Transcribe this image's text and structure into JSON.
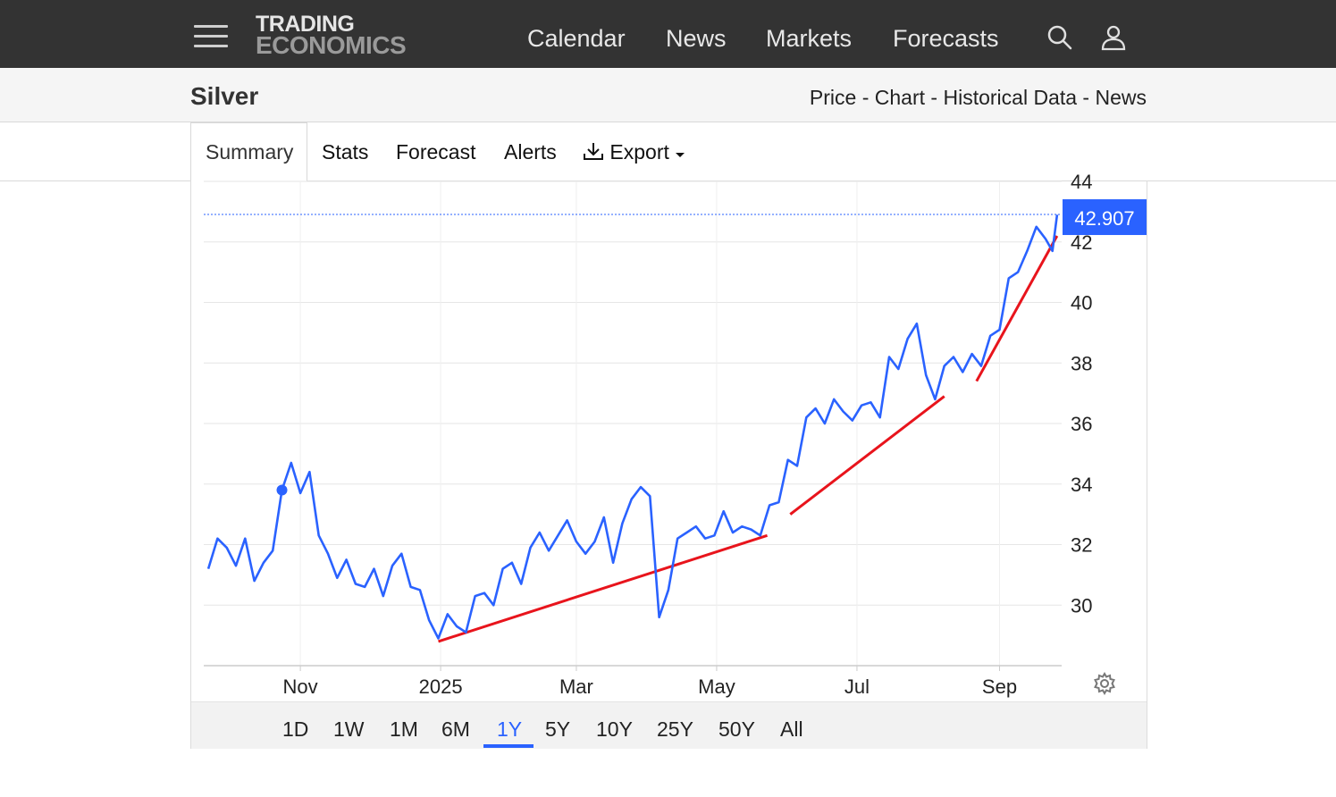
{
  "brand": {
    "line1": "TRADING",
    "line2": "ECONOMICS"
  },
  "nav": [
    {
      "label": "Calendar"
    },
    {
      "label": "News"
    },
    {
      "label": "Markets"
    },
    {
      "label": "Forecasts"
    }
  ],
  "icons": {
    "menu": "hamburger-menu-icon",
    "search": "search-icon",
    "user": "user-icon",
    "download": "download-icon",
    "caret": "caret-down-icon",
    "settings": "gear-icon"
  },
  "page": {
    "title": "Silver"
  },
  "breadcrumb": [
    {
      "label": "Price"
    },
    {
      "label": "Chart"
    },
    {
      "label": "Historical Data"
    },
    {
      "label": "News"
    }
  ],
  "breadcrumb_sep": " - ",
  "tabs": [
    {
      "label": "Summary",
      "active": true
    },
    {
      "label": "Stats"
    },
    {
      "label": "Forecast"
    },
    {
      "label": "Alerts"
    },
    {
      "label": "Export"
    }
  ],
  "ranges": [
    {
      "label": "1D"
    },
    {
      "label": "1W"
    },
    {
      "label": "1M"
    },
    {
      "label": "6M"
    },
    {
      "label": "1Y",
      "active": true
    },
    {
      "label": "5Y"
    },
    {
      "label": "10Y"
    },
    {
      "label": "25Y"
    },
    {
      "label": "50Y"
    },
    {
      "label": "All"
    }
  ],
  "colors": {
    "topbar": "#333333",
    "series": "#2a62ff",
    "trendline": "#e8141c",
    "price_label_bg": "#2a62ff",
    "active_range": "#2a62ff"
  },
  "chart_data": {
    "type": "line",
    "x_ticks": [
      "Nov",
      "2025",
      "Mar",
      "May",
      "Jul",
      "Sep"
    ],
    "y_ticks": [
      30,
      32,
      34,
      36,
      38,
      40,
      42,
      44
    ],
    "ylim": [
      28,
      44
    ],
    "grid": true,
    "last_price": "42.907",
    "series": [
      {
        "x": [
          "2024-09-22",
          "2024-09-26",
          "2024-09-30",
          "2024-10-04",
          "2024-10-08",
          "2024-10-12",
          "2024-10-16",
          "2024-10-20",
          "2024-10-24",
          "2024-10-28",
          "2024-11-01",
          "2024-11-05",
          "2024-11-09",
          "2024-11-13",
          "2024-11-17",
          "2024-11-21",
          "2024-11-25",
          "2024-11-29",
          "2024-12-03",
          "2024-12-07",
          "2024-12-11",
          "2024-12-15",
          "2024-12-19",
          "2024-12-23",
          "2024-12-27",
          "2024-12-31",
          "2025-01-04",
          "2025-01-08",
          "2025-01-12",
          "2025-01-16",
          "2025-01-20",
          "2025-01-24",
          "2025-01-28",
          "2025-02-01",
          "2025-02-05",
          "2025-02-09",
          "2025-02-13",
          "2025-02-17",
          "2025-02-21",
          "2025-02-25",
          "2025-03-01",
          "2025-03-05",
          "2025-03-09",
          "2025-03-13",
          "2025-03-17",
          "2025-03-21",
          "2025-03-25",
          "2025-03-29",
          "2025-04-02",
          "2025-04-06",
          "2025-04-10",
          "2025-04-14",
          "2025-04-18",
          "2025-04-22",
          "2025-04-26",
          "2025-04-30",
          "2025-05-04",
          "2025-05-08",
          "2025-05-12",
          "2025-05-16",
          "2025-05-20",
          "2025-05-24",
          "2025-05-28",
          "2025-06-01",
          "2025-06-05",
          "2025-06-09",
          "2025-06-13",
          "2025-06-17",
          "2025-06-21",
          "2025-06-25",
          "2025-06-29",
          "2025-07-03",
          "2025-07-07",
          "2025-07-11",
          "2025-07-15",
          "2025-07-19",
          "2025-07-23",
          "2025-07-27",
          "2025-07-31",
          "2025-08-04",
          "2025-08-08",
          "2025-08-12",
          "2025-08-16",
          "2025-08-20",
          "2025-08-24",
          "2025-08-28",
          "2025-09-01",
          "2025-09-05",
          "2025-09-09",
          "2025-09-13",
          "2025-09-17",
          "2025-09-21",
          "2025-09-24",
          "2025-09-26"
        ],
        "values": [
          31.2,
          32.2,
          31.9,
          31.3,
          32.2,
          30.8,
          31.4,
          31.8,
          33.8,
          34.7,
          33.7,
          34.4,
          32.3,
          31.7,
          30.9,
          31.5,
          30.7,
          30.6,
          31.2,
          30.3,
          31.3,
          31.7,
          30.6,
          30.5,
          29.5,
          28.9,
          29.7,
          29.3,
          29.1,
          30.3,
          30.4,
          30.0,
          31.2,
          31.4,
          30.7,
          31.9,
          32.4,
          31.8,
          32.3,
          32.8,
          32.1,
          31.7,
          32.1,
          32.9,
          31.4,
          32.7,
          33.5,
          33.9,
          33.6,
          29.6,
          30.5,
          32.2,
          32.4,
          32.6,
          32.2,
          32.3,
          33.1,
          32.4,
          32.6,
          32.5,
          32.3,
          33.3,
          33.4,
          34.8,
          34.6,
          36.2,
          36.5,
          36.0,
          36.8,
          36.4,
          36.1,
          36.6,
          36.7,
          36.2,
          38.2,
          37.8,
          38.8,
          39.3,
          37.6,
          36.8,
          37.9,
          38.2,
          37.7,
          38.3,
          37.9,
          38.9,
          39.1,
          40.8,
          41.0,
          41.7,
          42.5,
          42.1,
          41.7,
          42.9
        ]
      }
    ],
    "trendlines": [
      {
        "from": [
          "2024-12-31",
          28.8
        ],
        "to": [
          "2025-05-23",
          32.3
        ]
      },
      {
        "from": [
          "2025-06-02",
          33.0
        ],
        "to": [
          "2025-08-08",
          36.9
        ]
      },
      {
        "from": [
          "2025-08-22",
          37.4
        ],
        "to": [
          "2025-09-26",
          42.2
        ]
      }
    ]
  }
}
